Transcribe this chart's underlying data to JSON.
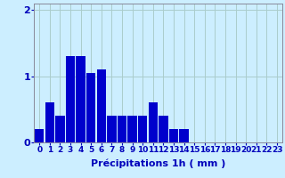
{
  "hours": [
    0,
    1,
    2,
    3,
    4,
    5,
    6,
    7,
    8,
    9,
    10,
    11,
    12,
    13,
    14,
    15,
    16,
    17,
    18,
    19,
    20,
    21,
    22,
    23
  ],
  "values": [
    0.2,
    0.6,
    0.4,
    1.3,
    1.3,
    1.05,
    1.1,
    0.4,
    0.4,
    0.4,
    0.4,
    0.6,
    0.4,
    0.2,
    0.2,
    0.0,
    0.0,
    0.0,
    0.0,
    0.0,
    0.0,
    0.0,
    0.0,
    0.0
  ],
  "bar_color": "#0000cc",
  "background_color": "#cceeff",
  "grid_color": "#aacccc",
  "text_color": "#0000bb",
  "xlabel": "Précipitations 1h ( mm )",
  "ylim": [
    0,
    2.1
  ],
  "yticks": [
    0,
    1,
    2
  ],
  "xlabel_fontsize": 8,
  "tick_fontsize": 6.5
}
